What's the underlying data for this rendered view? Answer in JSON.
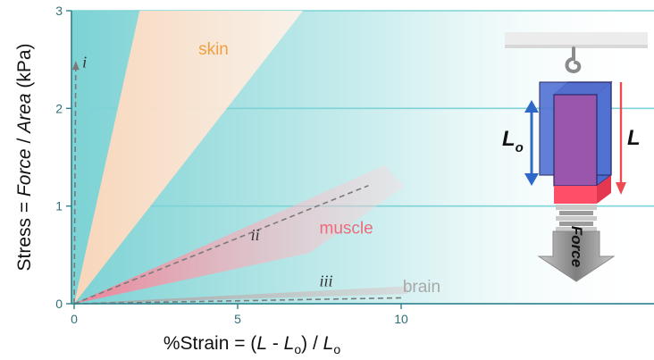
{
  "chart_data": {
    "type": "line",
    "xlabel_parts": [
      "%Strain = (",
      "L",
      " - ",
      "L",
      "o",
      ") / ",
      "L",
      "o"
    ],
    "ylabel_parts": [
      "Stress = ",
      "Force",
      " / ",
      "Area",
      "  (kPa)"
    ],
    "x_ticks": [
      "0",
      "5",
      "10"
    ],
    "y_ticks": [
      "0",
      "1",
      "2",
      "3"
    ],
    "xlim": [
      -2,
      17.3
    ],
    "ylim": [
      0,
      3
    ],
    "grid": "horizontal",
    "regions": [
      {
        "name": "skin",
        "color": "#f0a040",
        "fill": "#ffe6d0",
        "strain_range": [
          2.0,
          7.0
        ],
        "label_at": [
          3.8,
          2.55
        ]
      },
      {
        "name": "muscle",
        "color": "#ee6a7a",
        "fill": "#f8aab8",
        "strain_range": [
          9.0,
          8.8
        ],
        "stress_at_edges": [
          1.4,
          1.3
        ],
        "label_at": [
          7.5,
          0.72
        ]
      },
      {
        "name": "brain",
        "color": "#a8a8a8",
        "fill": "#bdbdbd",
        "strain_range": [
          10.0,
          10.0
        ],
        "stress_at_edges": [
          0.18,
          0.09
        ],
        "label_at": [
          10.05,
          0.12
        ]
      }
    ],
    "series": [
      {
        "name": "i",
        "x": [
          0,
          0.05
        ],
        "y": [
          0,
          2.45
        ],
        "label_at": [
          0.25,
          2.42
        ]
      },
      {
        "name": "ii",
        "x": [
          0,
          9.0
        ],
        "y": [
          0,
          1.21
        ],
        "label_at": [
          5.4,
          0.65
        ]
      },
      {
        "name": "iii",
        "x": [
          0,
          10.0
        ],
        "y": [
          0,
          0.06
        ],
        "label_at": [
          7.5,
          0.18
        ]
      }
    ]
  },
  "diagram": {
    "Lo_label": "L",
    "Lo_subscript": "o",
    "L_label": "L",
    "force_label": "Force",
    "colors": {
      "box": "#3d62c8",
      "box_front": "#9a56aa",
      "box_bottom": "#ff4e68",
      "arrow_lo": "#2f68c8",
      "arrow_l": "#ee4a52"
    }
  }
}
